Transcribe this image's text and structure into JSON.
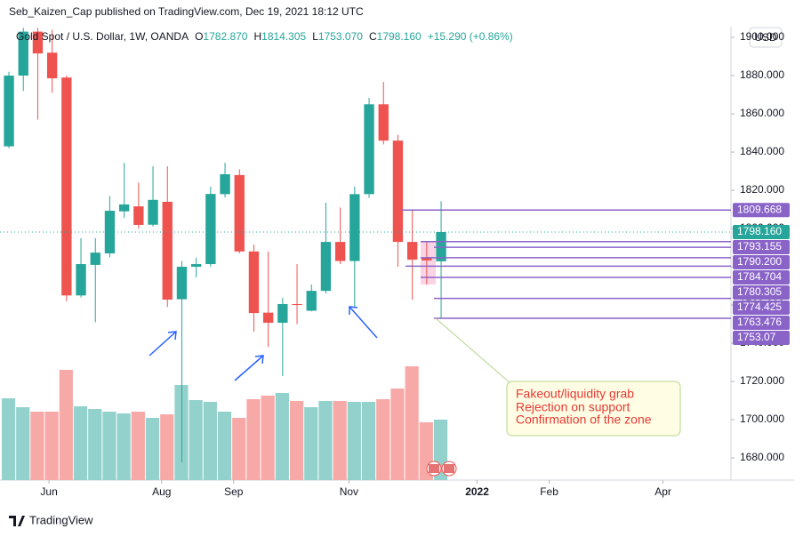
{
  "chart_data": {
    "type": "candlestick",
    "published": "Seb_Kaizen_Cap published on TradingView.com, Dec 19, 2021 18:12 UTC",
    "title": "Gold Spot / U.S. Dollar, 1W, OANDA",
    "legend_values": [
      {
        "key": "O",
        "value": "1782.870"
      },
      {
        "key": "H",
        "value": "1814.305"
      },
      {
        "key": "L",
        "value": "1753.070"
      },
      {
        "key": "C",
        "value": "1798.160"
      }
    ],
    "change": "+15.290 (+0.86%)",
    "currency": "USD",
    "brand": "TradingView",
    "x": [
      0,
      1,
      2,
      3,
      4,
      5,
      6,
      7,
      8,
      9,
      10,
      11,
      12,
      13,
      14,
      15,
      16,
      17,
      18,
      19,
      20,
      21,
      22,
      23,
      24,
      25,
      26,
      27,
      28,
      29,
      30
    ],
    "open": [
      1843,
      1880,
      1903,
      1892,
      1879,
      1765,
      1781,
      1787,
      1809,
      1811.6,
      1802,
      1814,
      1763,
      1780,
      1781.4,
      1818,
      1828,
      1788,
      1756,
      1750.7,
      1760.5,
      1757,
      1767.4,
      1793,
      1783,
      1818,
      1865,
      1846,
      1793,
      1784.7,
      1782.87
    ],
    "high": [
      1882,
      1905,
      1905,
      1904,
      1880,
      1795,
      1795,
      1817,
      1834.4,
      1824,
      1832.6,
      1832.6,
      1783,
      1784.7,
      1821.9,
      1834.4,
      1831,
      1791.6,
      1788,
      1763.7,
      1781.4,
      1770.7,
      1813.5,
      1811,
      1822,
      1868.4,
      1876.7,
      1849,
      1809.7,
      1793,
      1814.305
    ],
    "low": [
      1842,
      1872,
      1857,
      1871,
      1762,
      1764,
      1751,
      1785,
      1805.6,
      1800,
      1801,
      1759,
      1677.7,
      1774.4,
      1780,
      1816.3,
      1787,
      1746,
      1738,
      1722.8,
      1750,
      1756.7,
      1766,
      1781.4,
      1759,
      1816,
      1844,
      1780,
      1762.8,
      1770.7,
      1753.07
    ],
    "close": [
      1880,
      1903,
      1891.6,
      1878.6,
      1765,
      1781.4,
      1787.4,
      1809.3,
      1812.6,
      1801.9,
      1815,
      1762.8,
      1780,
      1781.4,
      1818.1,
      1828.4,
      1788,
      1755.8,
      1750.7,
      1760.5,
      1760,
      1767.4,
      1793,
      1783,
      1818,
      1865,
      1846,
      1793,
      1783.7,
      1783.3,
      1798.16
    ],
    "volume": [
      92,
      82,
      77,
      77,
      124,
      83,
      80,
      77,
      75,
      77,
      70,
      74,
      107,
      90,
      88,
      77,
      70,
      91,
      95,
      98,
      89,
      82,
      89,
      89,
      88,
      88,
      91,
      103,
      128,
      65,
      68
    ],
    "xlim": [
      -0.62,
      50.12
    ],
    "xticks": [
      {
        "value": 2.78,
        "label": "Jun"
      },
      {
        "value": 10.6,
        "label": "Aug"
      },
      {
        "value": 15.6,
        "label": "Sep"
      },
      {
        "value": 23.6,
        "label": "Nov"
      },
      {
        "value": 32.5,
        "label": "2022"
      },
      {
        "value": 37.5,
        "label": "Feb"
      },
      {
        "value": 45.4,
        "label": "Apr"
      }
    ],
    "ylim": [
      1668.4,
      1905.6
    ],
    "yticks": [
      {
        "value": 1680,
        "label": "1680.000"
      },
      {
        "value": 1700,
        "label": "1700.000"
      },
      {
        "value": 1720,
        "label": "1720.000"
      },
      {
        "value": 1740,
        "label": "1740.000"
      },
      {
        "value": 1760,
        "label": "1760.000"
      },
      {
        "value": 1780,
        "label": "1780.000"
      },
      {
        "value": 1800,
        "label": "1800.000"
      },
      {
        "value": 1820,
        "label": "1820.000"
      },
      {
        "value": 1840,
        "label": "1840.000"
      },
      {
        "value": 1860,
        "label": "1860.000"
      },
      {
        "value": 1880,
        "label": "1880.000"
      },
      {
        "value": 1900,
        "label": "1900.000"
      }
    ],
    "up_color": "#26a69a",
    "down_color": "#ef5350",
    "up_volume_color": "#93d2cc",
    "down_volume_color": "#f7a9a7",
    "last_price": {
      "value": 1798.16,
      "label": "1798.160"
    },
    "levels": [
      1809.668,
      1793.155,
      {
        "value": 1790.2,
        "label": "1790.200"
      },
      1784.704,
      1780.305,
      1774.425,
      1763.476,
      1753.07
    ],
    "level_color": "#8a63c9",
    "annotation": [
      "Fakeout/liquidity grab",
      "Rejection on support",
      "Confirmation of the zone"
    ]
  }
}
